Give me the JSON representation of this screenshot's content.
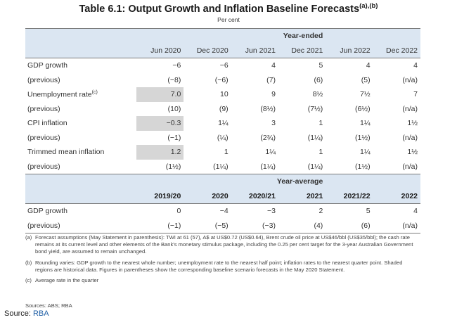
{
  "title": "Table 6.1: Output Growth and Inflation Baseline Forecasts",
  "title_sup": "(a),(b)",
  "subtitle": "Per cent",
  "section1": {
    "group_label": "Year-ended",
    "columns": [
      "Jun 2020",
      "Dec 2020",
      "Jun 2021",
      "Dec 2021",
      "Jun 2022",
      "Dec 2022"
    ],
    "rows": [
      {
        "label": "GDP growth",
        "sup": "",
        "values": [
          "−6",
          "−6",
          "4",
          "5",
          "4",
          "4"
        ],
        "shaded": false
      },
      {
        "label": "(previous)",
        "sup": "",
        "values": [
          "(−8)",
          "(−6)",
          "(7)",
          "(6)",
          "(5)",
          "(n/a)"
        ],
        "shaded": false
      },
      {
        "label": "Unemployment rate",
        "sup": "(c)",
        "values": [
          "7.0",
          "10",
          "9",
          "8½",
          "7½",
          "7"
        ],
        "shaded": true
      },
      {
        "label": "(previous)",
        "sup": "",
        "values": [
          "(10)",
          "(9)",
          "(8½)",
          "(7½)",
          "(6½)",
          "(n/a)"
        ],
        "shaded": false
      },
      {
        "label": "CPI inflation",
        "sup": "",
        "values": [
          "−0.3",
          "1¼",
          "3",
          "1",
          "1¼",
          "1½"
        ],
        "shaded": true
      },
      {
        "label": "(previous)",
        "sup": "",
        "values": [
          "(−1)",
          "(¼)",
          "(2¾)",
          "(1¼)",
          "(1½)",
          "(n/a)"
        ],
        "shaded": false
      },
      {
        "label": "Trimmed mean inflation",
        "sup": "",
        "values": [
          "1.2",
          "1",
          "1¼",
          "1",
          "1¼",
          "1½"
        ],
        "shaded": true
      },
      {
        "label": "(previous)",
        "sup": "",
        "values": [
          "(1½)",
          "(1¼)",
          "(1¼)",
          "(1¼)",
          "(1½)",
          "(n/a)"
        ],
        "shaded": false
      }
    ]
  },
  "section2": {
    "group_label": "Year-average",
    "columns": [
      "2019/20",
      "2020",
      "2020/21",
      "2021",
      "2021/22",
      "2022"
    ],
    "rows": [
      {
        "label": "GDP growth",
        "values": [
          "0",
          "−4",
          "−3",
          "2",
          "5",
          "4"
        ]
      },
      {
        "label": "(previous)",
        "values": [
          "(−1)",
          "(−5)",
          "(−3)",
          "(4)",
          "(6)",
          "(n/a)"
        ]
      }
    ]
  },
  "notes": [
    {
      "key": "(a)",
      "text": "Forecast assumptions (May Statement in parenthesis): TWI at 61 (57), A$ at US$0.72 (US$0.64), Brent crude oil price at US$46/bbl (US$35/bbl); the cash rate remains at its current level and other elements of the Bank's monetary stimulus package, including the 0.25 per cent target for the 3-year Australian Government bond yield, are assumed to remain unchanged."
    },
    {
      "key": "(b)",
      "text": "Rounding varies: GDP growth to the nearest whole number; unemployment rate to the nearest half point; inflation rates to the nearest quarter point. Shaded regions are historical data. Figures in parentheses show the corresponding baseline scenario forecasts in the May 2020 Statement."
    },
    {
      "key": "(c)",
      "text": "Average rate in the quarter"
    }
  ],
  "sources": "Sources: ABS; RBA",
  "source_label": "Source:",
  "source_link": "RBA",
  "colors": {
    "header_blue": "#dbe6f2",
    "historical_shade": "#d6d6d6",
    "link": "#1f5fa6"
  }
}
